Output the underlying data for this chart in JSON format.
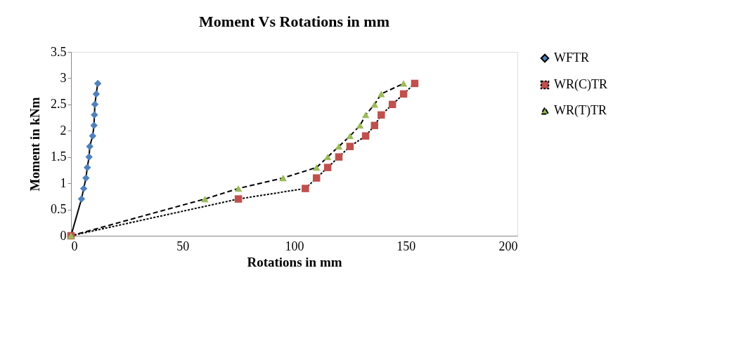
{
  "chart_data": {
    "type": "line",
    "title": "Moment Vs Rotations in mm",
    "xlabel": "Rotations in mm",
    "ylabel": "Moment in kNm",
    "xlim": [
      0,
      200
    ],
    "xticks": [
      0,
      50,
      100,
      150,
      200
    ],
    "ylim": [
      0,
      3.5
    ],
    "yticks": [
      0,
      0.5,
      1,
      1.5,
      2,
      2.5,
      3,
      3.5
    ],
    "grid": false,
    "legend": "right",
    "series": [
      {
        "name": "WFTR",
        "color": "#4f81bd",
        "marker": "diamond",
        "line_style": "solid",
        "x": [
          0,
          4.7,
          5.7,
          6.7,
          7.3,
          8.1,
          8.4,
          9.7,
          10.3,
          10.5,
          10.7,
          11.3,
          12
        ],
        "values": [
          0,
          0.7,
          0.9,
          1.1,
          1.3,
          1.5,
          1.7,
          1.9,
          2.1,
          2.3,
          2.5,
          2.7,
          2.9
        ]
      },
      {
        "name": "WR(C)TR",
        "color": "#c0504d",
        "marker": "square",
        "line_style": "dotted",
        "x": [
          0,
          75,
          105,
          110,
          115,
          120,
          125,
          132,
          136,
          139,
          144,
          149,
          154
        ],
        "values": [
          0,
          0.7,
          0.9,
          1.1,
          1.3,
          1.5,
          1.7,
          1.9,
          2.1,
          2.3,
          2.5,
          2.7,
          2.9
        ]
      },
      {
        "name": "WR(T)TR",
        "color": "#9bbb59",
        "marker": "triangle",
        "line_style": "dashed",
        "x": [
          0,
          60,
          75,
          95,
          110,
          115,
          120,
          125,
          129.5,
          132,
          136,
          139,
          149
        ],
        "values": [
          0,
          0.7,
          0.9,
          1.1,
          1.3,
          1.5,
          1.7,
          1.9,
          2.1,
          2.3,
          2.5,
          2.7,
          2.9
        ]
      }
    ]
  }
}
